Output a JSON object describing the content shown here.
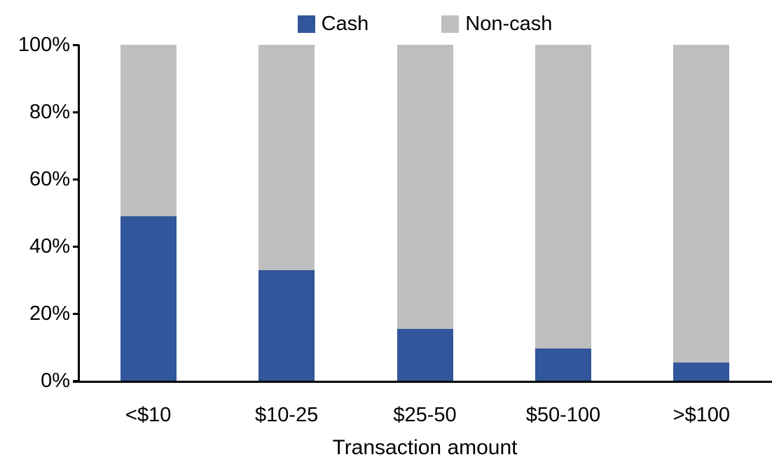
{
  "chart_data": {
    "type": "bar",
    "stacked": true,
    "percent_stacked": true,
    "title": "",
    "categories": [
      "<$10",
      "$10-25",
      "$25-50",
      "$50-100",
      ">$100"
    ],
    "series": [
      {
        "name": "Cash",
        "color": "#31569B",
        "values": [
          49,
          33,
          15.5,
          9.5,
          5.5
        ]
      },
      {
        "name": "Non-cash",
        "color": "#BFBFBF",
        "values": [
          51,
          67,
          84.5,
          90.5,
          94.5
        ]
      }
    ],
    "xlabel": "Transaction amount",
    "ylabel": "",
    "ylim": [
      0,
      100
    ],
    "y_ticks": [
      "0%",
      "20%",
      "40%",
      "60%",
      "80%",
      "100%"
    ],
    "legend_position": "top",
    "grid": false
  },
  "colors": {
    "cash": "#31569B",
    "non_cash": "#BFBFBF",
    "axis": "#000000",
    "background": "#FFFFFF"
  }
}
